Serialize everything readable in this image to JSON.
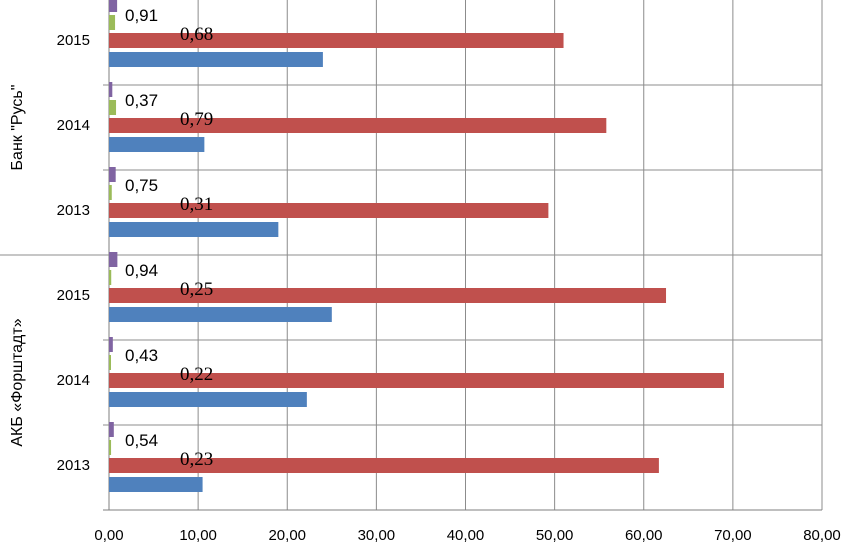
{
  "chart_data": {
    "type": "bar",
    "orientation": "horizontal",
    "grid": true,
    "xlim": [
      0,
      80
    ],
    "x_ticks": [
      "0,00",
      "10,00",
      "20,00",
      "30,00",
      "40,00",
      "50,00",
      "60,00",
      "70,00",
      "80,00"
    ],
    "groups": [
      {
        "name": "АКБ «Форштадт»",
        "years": [
          {
            "year": "2013",
            "blue": 10.5,
            "red": 61.7,
            "green": 0.23,
            "purple": 0.54,
            "label_serif": "0,23",
            "label_sans": "0,54"
          },
          {
            "year": "2014",
            "blue": 22.2,
            "red": 69.0,
            "green": 0.22,
            "purple": 0.43,
            "label_serif": "0,22",
            "label_sans": "0,43"
          },
          {
            "year": "2015",
            "blue": 25.0,
            "red": 62.5,
            "green": 0.25,
            "purple": 0.94,
            "label_serif": "0,25",
            "label_sans": "0,94"
          }
        ]
      },
      {
        "name": "Банк \"Русь\"",
        "years": [
          {
            "year": "2013",
            "blue": 19.0,
            "red": 49.3,
            "green": 0.31,
            "purple": 0.75,
            "label_serif": "0,31",
            "label_sans": "0,75"
          },
          {
            "year": "2014",
            "blue": 10.7,
            "red": 55.8,
            "green": 0.79,
            "purple": 0.37,
            "label_serif": "0,79",
            "label_sans": "0,37"
          },
          {
            "year": "2015",
            "blue": 24.0,
            "red": 51.0,
            "green": 0.68,
            "purple": 0.91,
            "label_serif": "0,68",
            "label_sans": "0,91"
          }
        ]
      }
    ],
    "colors": {
      "blue": "#4F81BD",
      "red": "#C0504D",
      "green": "#9BBB59",
      "purple": "#8064A2",
      "grid": "#8C8C8C",
      "axis": "#7F7F7F"
    }
  }
}
